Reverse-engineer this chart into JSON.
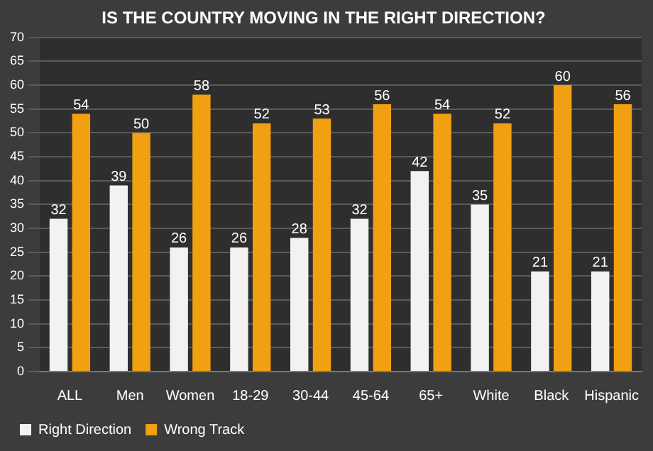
{
  "chart_data": {
    "type": "bar",
    "title": "IS THE COUNTRY MOVING IN THE RIGHT DIRECTION?",
    "categories": [
      "ALL",
      "Men",
      "Women",
      "18-29",
      "30-44",
      "45-64",
      "65+",
      "White",
      "Black",
      "Hispanic"
    ],
    "series": [
      {
        "name": "Right Direction",
        "color": "#f2f2f2",
        "values": [
          32,
          39,
          26,
          26,
          28,
          32,
          42,
          35,
          21,
          21
        ]
      },
      {
        "name": "Wrong Track",
        "color": "#f0a010",
        "values": [
          54,
          50,
          58,
          52,
          53,
          56,
          54,
          52,
          60,
          56
        ]
      }
    ],
    "ylim": [
      0,
      70
    ],
    "yticks": [
      0,
      5,
      10,
      15,
      20,
      25,
      30,
      35,
      40,
      45,
      50,
      55,
      60,
      65,
      70
    ],
    "grid": "y",
    "legend": "bottom left",
    "data_labels": true
  }
}
